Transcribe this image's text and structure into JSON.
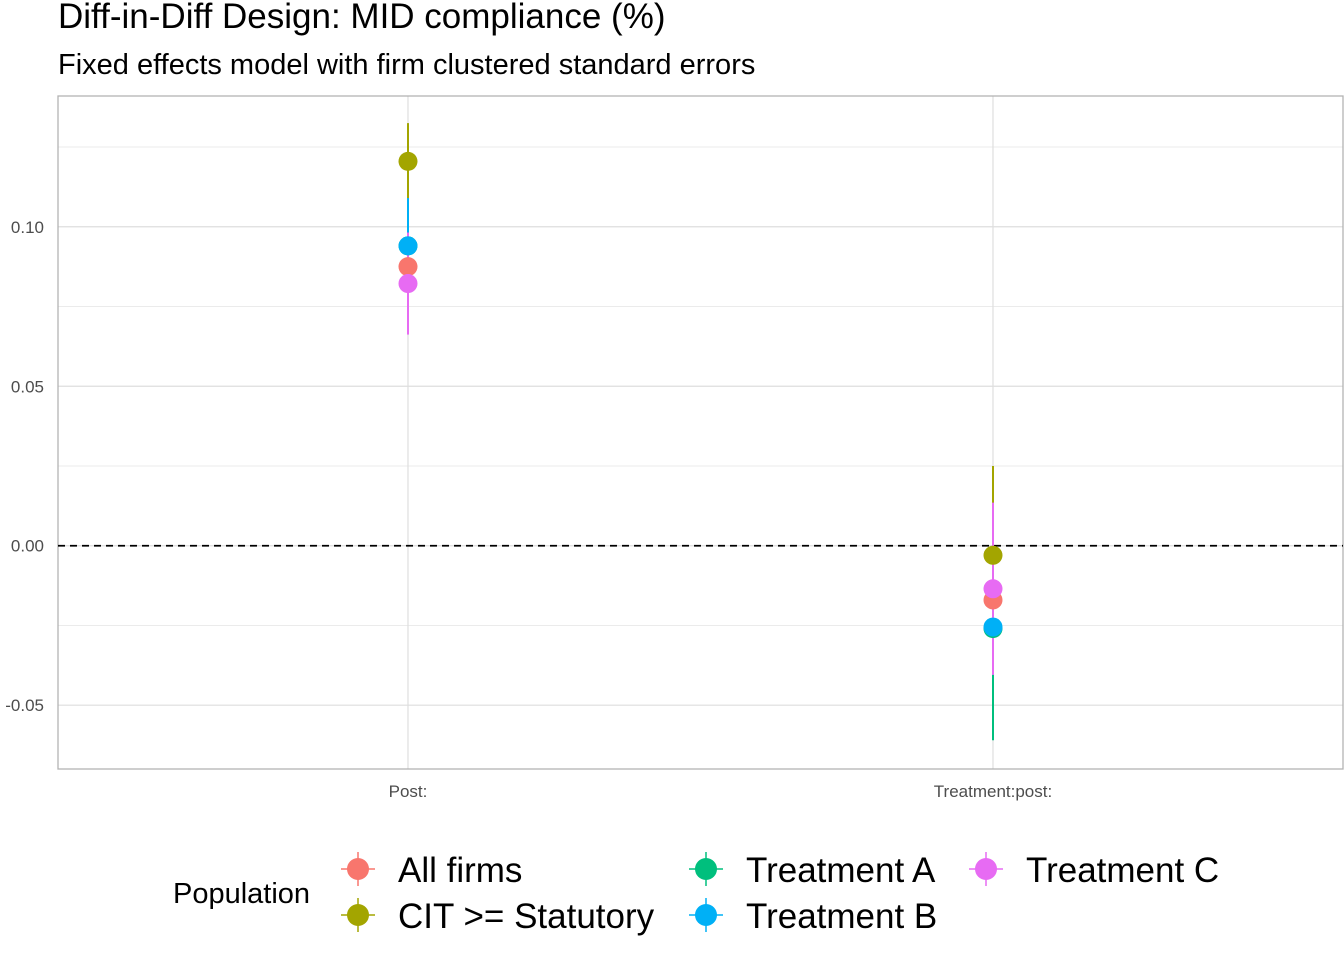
{
  "chart_data": {
    "type": "scatter",
    "title": "Diff-in-Diff Design: MID compliance (%)",
    "subtitle": "Fixed effects model with firm clustered standard errors",
    "categories": [
      "Post:",
      "Treatment:post:"
    ],
    "ylim": [
      -0.07,
      0.141
    ],
    "yticks": [
      -0.05,
      0.0,
      0.05,
      0.1
    ],
    "ytick_labels": [
      "-0.05",
      "0.00",
      "0.05",
      "0.10"
    ],
    "reference_line": 0,
    "grid": true,
    "legend": {
      "title": "Population",
      "position": "bottom"
    },
    "series": [
      {
        "name": "All firms",
        "color": "#F8766D",
        "points": [
          {
            "category": "Post:",
            "estimate": 0.0875,
            "low": 0.0825,
            "high": 0.0925
          },
          {
            "category": "Treatment:post:",
            "estimate": -0.017,
            "low": -0.022,
            "high": -0.012
          }
        ]
      },
      {
        "name": "CIT >= Statutory",
        "color": "#A3A500",
        "points": [
          {
            "category": "Post:",
            "estimate": 0.1205,
            "low": 0.1085,
            "high": 0.1325
          },
          {
            "category": "Treatment:post:",
            "estimate": -0.003,
            "low": -0.03,
            "high": 0.025
          }
        ]
      },
      {
        "name": "Treatment A",
        "color": "#00BF7D",
        "points": [
          {
            "category": "Post:",
            "estimate": 0.094,
            "low": 0.088,
            "high": 0.1
          },
          {
            "category": "Treatment:post:",
            "estimate": -0.026,
            "low": -0.061,
            "high": 0.009
          }
        ]
      },
      {
        "name": "Treatment B",
        "color": "#00B0F6",
        "points": [
          {
            "category": "Post:",
            "estimate": 0.094,
            "low": 0.079,
            "high": 0.109
          },
          {
            "category": "Treatment:post:",
            "estimate": -0.0255,
            "low": -0.0405,
            "high": -0.0105
          }
        ]
      },
      {
        "name": "Treatment C",
        "color": "#E76BF3",
        "points": [
          {
            "category": "Post:",
            "estimate": 0.0822,
            "low": 0.0662,
            "high": 0.0982
          },
          {
            "category": "Treatment:post:",
            "estimate": -0.0135,
            "low": -0.0405,
            "high": 0.0135
          }
        ]
      }
    ]
  }
}
